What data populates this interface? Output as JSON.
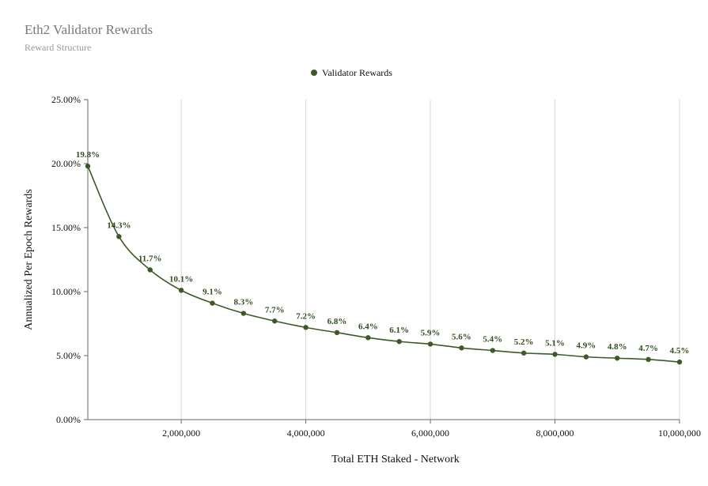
{
  "header": {
    "title": "Eth2 Validator Rewards",
    "subtitle": "Reward Structure"
  },
  "colors": {
    "series": "#3b5a26",
    "label": "#2f4f1f",
    "grid": "#d9d9d9",
    "axis": "#666666"
  },
  "chart_data": {
    "type": "line",
    "title": "Eth2 Validator Rewards",
    "subtitle": "Reward Structure",
    "xlabel": "Total ETH Staked - Network",
    "ylabel": "Annualized Per Epoch Rewards",
    "xlim": [
      500000,
      10000000
    ],
    "ylim": [
      0,
      25
    ],
    "x_ticks": [
      2000000,
      4000000,
      6000000,
      8000000,
      10000000
    ],
    "x_tick_labels": [
      "2,000,000",
      "4,000,000",
      "6,000,000",
      "8,000,000",
      "10,000,000"
    ],
    "y_ticks": [
      0,
      5,
      10,
      15,
      20,
      25
    ],
    "y_tick_labels": [
      "0.00%",
      "5.00%",
      "10.00%",
      "15.00%",
      "20.00%",
      "25.00%"
    ],
    "grid": "vertical",
    "legend_position": "top-center",
    "series": [
      {
        "name": "Validator Rewards",
        "x": [
          500000,
          1000000,
          1500000,
          2000000,
          2500000,
          3000000,
          3500000,
          4000000,
          4500000,
          5000000,
          5500000,
          6000000,
          6500000,
          7000000,
          7500000,
          8000000,
          8500000,
          9000000,
          9500000,
          10000000
        ],
        "y": [
          19.8,
          14.3,
          11.7,
          10.1,
          9.1,
          8.3,
          7.7,
          7.2,
          6.8,
          6.4,
          6.1,
          5.9,
          5.6,
          5.4,
          5.2,
          5.1,
          4.9,
          4.8,
          4.7,
          4.5
        ],
        "labels": [
          "19.8%",
          "14.3%",
          "11.7%",
          "10.1%",
          "9.1%",
          "8.3%",
          "7.7%",
          "7.2%",
          "6.8%",
          "6.4%",
          "6.1%",
          "5.9%",
          "5.6%",
          "5.4%",
          "5.2%",
          "5.1%",
          "4.9%",
          "4.8%",
          "4.7%",
          "4.5%"
        ]
      }
    ]
  }
}
